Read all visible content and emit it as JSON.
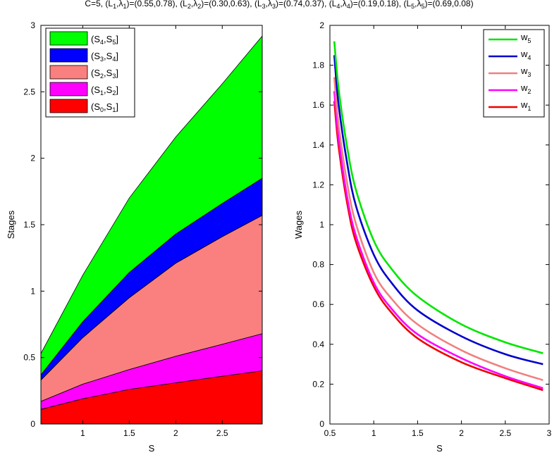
{
  "title": {
    "prefix": "C=5,",
    "pairs": [
      {
        "i": "1",
        "value": "=(0.55,0.78),"
      },
      {
        "i": "2",
        "value": "=(0.30,0.63),"
      },
      {
        "i": "3",
        "value": "=(0.74,0.37),"
      },
      {
        "i": "4",
        "value": "=(0.19,0.18),"
      },
      {
        "i": "5",
        "value": "=(0.69,0.08)"
      }
    ]
  },
  "chart_data": [
    {
      "type": "area",
      "stacked": true,
      "xlabel": "S",
      "ylabel": "Stages",
      "xlim": [
        0.55,
        2.93
      ],
      "ylim": [
        0,
        3
      ],
      "xticks": [
        "1",
        "1.5",
        "2",
        "2.5"
      ],
      "yticks": [
        "0",
        "0.5",
        "1",
        "1.5",
        "2",
        "2.5",
        "3"
      ],
      "legend_position": "top-left",
      "x": [
        0.55,
        1.0,
        1.5,
        2.0,
        2.5,
        2.93
      ],
      "boundaries": [
        [
          0.11,
          0.19,
          0.26,
          0.31,
          0.36,
          0.4
        ],
        [
          0.17,
          0.3,
          0.41,
          0.51,
          0.6,
          0.68
        ],
        [
          0.33,
          0.65,
          0.95,
          1.21,
          1.41,
          1.57
        ],
        [
          0.37,
          0.77,
          1.14,
          1.43,
          1.66,
          1.85
        ],
        [
          0.53,
          1.12,
          1.7,
          2.16,
          2.56,
          2.92
        ]
      ],
      "series": [
        {
          "name": "(S0,S1]",
          "label": {
            "a": "0",
            "b": "1"
          },
          "color": "#ff0000"
        },
        {
          "name": "(S1,S2]",
          "label": {
            "a": "1",
            "b": "2"
          },
          "color": "#ff00ff"
        },
        {
          "name": "(S2,S3]",
          "label": {
            "a": "2",
            "b": "3"
          },
          "color": "#fa8080"
        },
        {
          "name": "(S3,S4]",
          "label": {
            "a": "3",
            "b": "4"
          },
          "color": "#0000ff"
        },
        {
          "name": "(S4,S5]",
          "label": {
            "a": "4",
            "b": "5"
          },
          "color": "#00ff00"
        }
      ]
    },
    {
      "type": "line",
      "xlabel": "S",
      "ylabel": "Wages",
      "xlim": [
        0.5,
        3
      ],
      "ylim": [
        0,
        2
      ],
      "xticks": [
        "0.5",
        "1",
        "1.5",
        "2",
        "2.5",
        "3"
      ],
      "yticks": [
        "0",
        "0.2",
        "0.4",
        "0.6",
        "0.8",
        "1",
        "1.2",
        "1.4",
        "1.6",
        "1.8",
        "2"
      ],
      "legend_position": "top-right",
      "x": [
        0.55,
        0.6,
        0.7,
        0.8,
        1.0,
        1.2,
        1.5,
        2.0,
        2.5,
        2.93
      ],
      "series": [
        {
          "name": "w5",
          "sub": "5",
          "color": "#00e600",
          "values": [
            1.92,
            1.68,
            1.38,
            1.17,
            0.92,
            0.78,
            0.64,
            0.5,
            0.41,
            0.355
          ]
        },
        {
          "name": "w4",
          "sub": "4",
          "color": "#0000cc",
          "values": [
            1.85,
            1.6,
            1.3,
            1.09,
            0.85,
            0.71,
            0.57,
            0.44,
            0.35,
            0.3
          ]
        },
        {
          "name": "w3",
          "sub": "3",
          "color": "#f08080",
          "values": [
            1.74,
            1.5,
            1.2,
            1.0,
            0.76,
            0.63,
            0.5,
            0.37,
            0.28,
            0.22
          ]
        },
        {
          "name": "w2",
          "sub": "2",
          "color": "#ff00ff",
          "values": [
            1.67,
            1.43,
            1.13,
            0.94,
            0.71,
            0.58,
            0.45,
            0.33,
            0.24,
            0.18
          ]
        },
        {
          "name": "w1",
          "sub": "1",
          "color": "#ee0000",
          "values": [
            1.62,
            1.39,
            1.1,
            0.91,
            0.69,
            0.56,
            0.43,
            0.31,
            0.23,
            0.17
          ]
        }
      ]
    }
  ]
}
